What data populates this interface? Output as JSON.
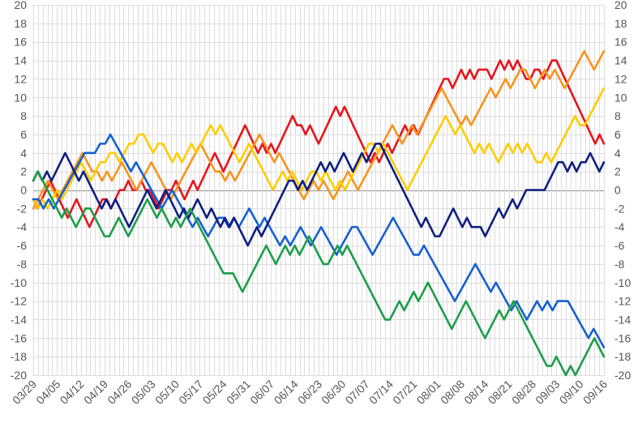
{
  "chart_data": {
    "type": "line",
    "title": "",
    "xlabel": "",
    "ylabel": "",
    "ylim": [
      -20,
      20
    ],
    "yticks": [
      20,
      18,
      16,
      14,
      12,
      10,
      8,
      6,
      4,
      2,
      0,
      -2,
      -4,
      -6,
      -8,
      -10,
      -12,
      -14,
      -16,
      -18,
      -20
    ],
    "grid": true,
    "legend": "none",
    "x_start": "03/29",
    "x_end": "09/16",
    "xticks": [
      "03/29",
      "04/05",
      "04/12",
      "04/19",
      "04/26",
      "05/03",
      "05/10",
      "05/17",
      "05/24",
      "05/31",
      "06/07",
      "06/14",
      "06/23",
      "06/30",
      "07/07",
      "07/14",
      "07/21",
      "08/01",
      "08/08",
      "08/14",
      "08/21",
      "08/28",
      "09/03",
      "09/10",
      "09/16"
    ],
    "series": [
      {
        "color": "#e8141c",
        "values": [
          -1,
          -2,
          -1,
          0,
          1,
          0,
          -1,
          -2,
          -3,
          -2,
          -1,
          -2,
          -3,
          -4,
          -3,
          -2,
          -1,
          -1,
          -2,
          -1,
          0,
          0,
          1,
          0,
          0,
          1,
          0,
          0,
          -1,
          -2,
          -1,
          0,
          0,
          1,
          0,
          -1,
          0,
          1,
          0,
          1,
          2,
          3,
          4,
          3,
          2,
          3,
          4,
          5,
          6,
          7,
          6,
          5,
          4,
          5,
          4,
          5,
          4,
          5,
          6,
          7,
          8,
          7,
          7,
          6,
          7,
          6,
          5,
          6,
          7,
          8,
          9,
          8,
          9,
          8,
          7,
          6,
          5,
          4,
          3,
          4,
          3,
          4,
          5,
          4,
          5,
          6,
          7,
          6,
          7,
          6,
          7,
          8,
          9,
          10,
          11,
          12,
          12,
          11,
          12,
          13,
          12,
          13,
          12,
          13,
          13,
          13,
          12,
          13,
          14,
          13,
          14,
          13,
          14,
          13,
          12,
          12,
          13,
          13,
          12,
          13,
          14,
          14,
          13,
          12,
          11,
          10,
          9,
          8,
          7,
          6,
          5,
          6,
          5
        ]
      },
      {
        "color": "#f7941d",
        "values": [
          -2,
          -1,
          0,
          1,
          0,
          -1,
          0,
          1,
          2,
          3,
          4,
          3,
          2,
          2,
          1,
          2,
          1,
          2,
          3,
          2,
          1,
          0,
          1,
          2,
          3,
          2,
          1,
          0,
          -1,
          0,
          1,
          2,
          3,
          4,
          5,
          4,
          3,
          2,
          2,
          1,
          2,
          1,
          2,
          3,
          4,
          5,
          6,
          5,
          4,
          3,
          4,
          3,
          2,
          1,
          0,
          -1,
          0,
          1,
          0,
          1,
          0,
          -1,
          0,
          1,
          2,
          1,
          0,
          1,
          2,
          3,
          4,
          5,
          6,
          7,
          6,
          5,
          6,
          7,
          6,
          7,
          8,
          9,
          10,
          11,
          10,
          9,
          8,
          7,
          8,
          7,
          8,
          9,
          10,
          11,
          10,
          11,
          12,
          11,
          12,
          13,
          13,
          12,
          11,
          12,
          13,
          12,
          13,
          12,
          11,
          12,
          13,
          14,
          15,
          14,
          13,
          14,
          15
        ]
      },
      {
        "color": "#ffcc00",
        "values": [
          -1,
          -2,
          -1,
          -2,
          -1,
          0,
          -1,
          0,
          1,
          2,
          3,
          2,
          1,
          2,
          3,
          3,
          4,
          4,
          3,
          4,
          5,
          5,
          6,
          6,
          5,
          4,
          5,
          5,
          4,
          3,
          4,
          3,
          4,
          5,
          4,
          5,
          6,
          7,
          6,
          7,
          6,
          5,
          4,
          3,
          4,
          5,
          4,
          3,
          2,
          1,
          0,
          1,
          2,
          1,
          2,
          1,
          0,
          1,
          2,
          2,
          1,
          2,
          1,
          0,
          1,
          0,
          1,
          2,
          3,
          4,
          5,
          5,
          4,
          5,
          4,
          3,
          2,
          1,
          0,
          1,
          2,
          3,
          4,
          5,
          6,
          7,
          8,
          7,
          6,
          7,
          6,
          5,
          4,
          5,
          4,
          5,
          4,
          3,
          4,
          5,
          4,
          5,
          4,
          5,
          4,
          3,
          3,
          4,
          3,
          4,
          5,
          6,
          7,
          8,
          7,
          7,
          8,
          9,
          10,
          11
        ]
      },
      {
        "color": "#1560d0",
        "values": [
          -1,
          -1,
          -2,
          -1,
          -2,
          -1,
          0,
          1,
          2,
          3,
          4,
          4,
          4,
          5,
          5,
          6,
          5,
          4,
          3,
          2,
          3,
          2,
          1,
          0,
          -1,
          -2,
          -1,
          0,
          -1,
          -2,
          -3,
          -4,
          -3,
          -4,
          -5,
          -4,
          -3,
          -3,
          -4,
          -3,
          -4,
          -3,
          -2,
          -3,
          -4,
          -3,
          -4,
          -5,
          -6,
          -5,
          -6,
          -5,
          -4,
          -5,
          -6,
          -5,
          -4,
          -5,
          -6,
          -7,
          -6,
          -5,
          -4,
          -4,
          -5,
          -6,
          -7,
          -6,
          -5,
          -4,
          -3,
          -4,
          -5,
          -6,
          -7,
          -7,
          -6,
          -7,
          -8,
          -9,
          -10,
          -11,
          -12,
          -11,
          -10,
          -9,
          -8,
          -9,
          -10,
          -11,
          -10,
          -11,
          -12,
          -13,
          -12,
          -13,
          -14,
          -13,
          -12,
          -13,
          -12,
          -13,
          -12,
          -12,
          -12,
          -13,
          -14,
          -15,
          -16,
          -15,
          -16,
          -17
        ]
      },
      {
        "color": "#0f1f80",
        "values": [
          1,
          2,
          1,
          2,
          1,
          2,
          3,
          4,
          3,
          2,
          1,
          2,
          1,
          0,
          -1,
          -2,
          -1,
          -2,
          -1,
          -2,
          -3,
          -4,
          -3,
          -2,
          -1,
          0,
          -1,
          -2,
          -1,
          0,
          -1,
          -2,
          -3,
          -2,
          -3,
          -2,
          -1,
          -2,
          -3,
          -2,
          -3,
          -4,
          -3,
          -4,
          -3,
          -4,
          -5,
          -6,
          -5,
          -4,
          -5,
          -4,
          -3,
          -2,
          -1,
          0,
          1,
          1,
          0,
          1,
          0,
          1,
          2,
          3,
          2,
          3,
          2,
          3,
          4,
          3,
          2,
          3,
          4,
          3,
          4,
          5,
          5,
          4,
          3,
          2,
          1,
          0,
          -1,
          -2,
          -3,
          -4,
          -3,
          -4,
          -5,
          -5,
          -4,
          -3,
          -2,
          -3,
          -4,
          -3,
          -4,
          -4,
          -4,
          -5,
          -4,
          -3,
          -2,
          -3,
          -2,
          -1,
          -2,
          -1,
          0,
          0,
          0,
          0,
          0,
          1,
          2,
          3,
          3,
          2,
          3,
          2,
          3,
          3,
          4,
          3,
          2,
          3
        ]
      },
      {
        "color": "#1e9e4a",
        "values": [
          1,
          2,
          1,
          0,
          -1,
          -2,
          -3,
          -2,
          -3,
          -4,
          -3,
          -2,
          -2,
          -3,
          -4,
          -5,
          -5,
          -4,
          -3,
          -4,
          -5,
          -4,
          -3,
          -2,
          -1,
          -2,
          -3,
          -2,
          -3,
          -4,
          -3,
          -4,
          -3,
          -2,
          -3,
          -4,
          -5,
          -6,
          -7,
          -8,
          -9,
          -9,
          -9,
          -10,
          -11,
          -10,
          -9,
          -8,
          -7,
          -6,
          -7,
          -8,
          -7,
          -6,
          -7,
          -6,
          -7,
          -6,
          -5,
          -6,
          -7,
          -8,
          -8,
          -7,
          -6,
          -7,
          -6,
          -7,
          -8,
          -9,
          -10,
          -11,
          -12,
          -13,
          -14,
          -14,
          -13,
          -12,
          -13,
          -12,
          -11,
          -12,
          -11,
          -10,
          -11,
          -12,
          -13,
          -14,
          -15,
          -14,
          -13,
          -12,
          -13,
          -14,
          -15,
          -16,
          -15,
          -14,
          -13,
          -14,
          -13,
          -12,
          -13,
          -14,
          -15,
          -16,
          -17,
          -18,
          -19,
          -19,
          -18,
          -19,
          -20,
          -19,
          -20,
          -19,
          -18,
          -17,
          -16,
          -17,
          -18
        ]
      }
    ]
  }
}
